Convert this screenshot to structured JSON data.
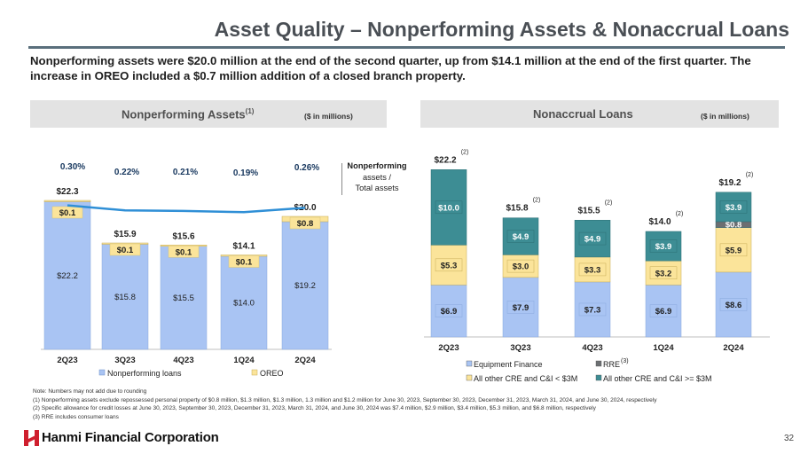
{
  "title": "Asset Quality – Nonperforming Assets & Nonaccrual Loans",
  "summary": "Nonperforming assets were $20.0 million at the end of the second quarter, up from $14.1 million at the end of the first quarter. The increase in OREO included a $0.7 million addition of a closed branch property.",
  "left_panel": {
    "title": "Nonperforming Assets",
    "title_sup": "(1)",
    "unit": "($ in millions)",
    "ratio_label_lines": [
      "Nonperforming",
      "assets /",
      "Total assets"
    ]
  },
  "right_panel": {
    "title": "Nonaccrual Loans",
    "unit": "($ in millions)"
  },
  "colors": {
    "blue": "#a9c4f3",
    "yellow": "#fbe49a",
    "teal": "#3d8d94",
    "gray": "#6c6f72",
    "label_box": "#fbe49a",
    "line": "#2f8fd6",
    "accent_red": "#cf1f2e"
  },
  "chart_data": [
    {
      "type": "bar",
      "stacked": true,
      "categories": [
        "2Q23",
        "3Q23",
        "4Q23",
        "1Q24",
        "2Q24"
      ],
      "series": [
        {
          "name": "Nonperforming loans",
          "values": [
            22.2,
            15.8,
            15.5,
            14.0,
            19.2
          ],
          "value_labels": [
            "$22.2",
            "$15.8",
            "$15.5",
            "$14.0",
            "$19.2"
          ],
          "color": "#a9c4f3"
        },
        {
          "name": "OREO",
          "values": [
            0.1,
            0.1,
            0.1,
            0.1,
            0.8
          ],
          "value_labels": [
            "$0.1",
            "$0.1",
            "$0.1",
            "$0.1",
            "$0.8"
          ],
          "color": "#fbe49a"
        }
      ],
      "totals": [
        "$22.3",
        "$15.9",
        "$15.6",
        "$14.1",
        "$20.0"
      ],
      "ratio_series": {
        "values": [
          0.3,
          0.22,
          0.21,
          0.19,
          0.26
        ],
        "labels": [
          "0.30%",
          "0.22%",
          "0.21%",
          "0.19%",
          "0.26%"
        ]
      },
      "legend": [
        "Nonperforming loans",
        "OREO"
      ],
      "legend_position": "bottom"
    },
    {
      "type": "bar",
      "stacked": true,
      "categories": [
        "2Q23",
        "3Q23",
        "4Q23",
        "1Q24",
        "2Q24"
      ],
      "series": [
        {
          "name": "Equipment Finance",
          "values": [
            6.9,
            7.9,
            7.3,
            6.9,
            8.6
          ],
          "value_labels": [
            "$6.9",
            "$7.9",
            "$7.3",
            "$6.9",
            "$8.6"
          ],
          "color": "#a9c4f3"
        },
        {
          "name": "All other CRE and C&I < $3M",
          "values": [
            5.3,
            3.0,
            3.3,
            3.2,
            5.9
          ],
          "value_labels": [
            "$5.3",
            "$3.0",
            "$3.3",
            "$3.2",
            "$5.9"
          ],
          "color": "#fbe49a"
        },
        {
          "name": "RRE",
          "values": [
            0,
            0,
            0,
            0,
            0.8
          ],
          "value_labels": [
            "",
            "",
            "",
            "",
            "$0.8"
          ],
          "color": "#6c6f72"
        },
        {
          "name": "All other CRE and C&I >= $3M",
          "values": [
            10.0,
            4.9,
            4.9,
            3.9,
            3.9
          ],
          "value_labels": [
            "$10.0",
            "$4.9",
            "$4.9",
            "$3.9",
            "$3.9"
          ],
          "color": "#3d8d94"
        }
      ],
      "totals": [
        "$22.2",
        "$15.8",
        "$15.5",
        "$14.0",
        "$19.2"
      ],
      "total_sup": "(2)",
      "legend": [
        "Equipment Finance",
        "RRE",
        "All other CRE and C&I < $3M",
        "All other CRE and C&I >= $3M"
      ],
      "legend_rre_sup": "(3)",
      "legend_position": "bottom"
    }
  ],
  "footnotes": [
    "Note: Numbers may not add due to rounding",
    "(1)    Nonperforming assets exclude repossessed personal property of $0.8 million, $1.3 million, $1.3 million, 1.3 million and $1.2 million for June 30, 2023, September 30, 2023, December 31, 2023, March 31, 2024, and June 30, 2024, respectively",
    "(2)    Specific allowance for credit losses at June 30, 2023, September 30, 2023, December 31, 2023, March 31, 2024, and June 30, 2024 was $7.4 million, $2.9 million, $3.4 million, $5.3 million, and $6.8 million, respectively",
    "(3)    RRE includes consumer loans"
  ],
  "logo_text": "Hanmi Financial Corporation",
  "page_number": "32"
}
